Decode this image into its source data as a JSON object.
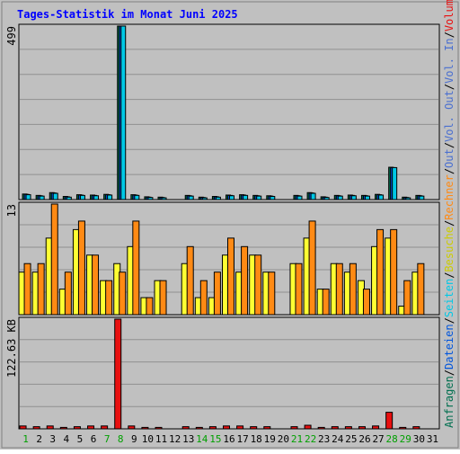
{
  "chart_data": [
    {
      "type": "bar",
      "title": "Tages-Statistik im Monat Juni 2025",
      "panel": "top",
      "ymax_label": "499",
      "ylim": [
        0,
        499
      ],
      "categories": [
        "1",
        "2",
        "3",
        "4",
        "5",
        "6",
        "7",
        "8",
        "9",
        "10",
        "11",
        "12",
        "13",
        "14",
        "15",
        "16",
        "17",
        "18",
        "19",
        "20",
        "21",
        "22",
        "23",
        "24",
        "25",
        "26",
        "27",
        "28",
        "29",
        "30",
        "31"
      ],
      "weekend_days": [
        "1",
        "7",
        "8",
        "14",
        "15",
        "21",
        "22",
        "28",
        "29"
      ],
      "series": [
        {
          "name": "Anfragen",
          "color": "#006f4f",
          "values": [
            16,
            12,
            20,
            9,
            14,
            13,
            15,
            499,
            14,
            8,
            7,
            0,
            12,
            7,
            9,
            13,
            14,
            12,
            11,
            0,
            12,
            20,
            8,
            12,
            13,
            12,
            15,
            93,
            7,
            12,
            0
          ]
        },
        {
          "name": "Dateien",
          "color": "#0055dd",
          "values": [
            15,
            11,
            19,
            8,
            13,
            12,
            14,
            499,
            13,
            7,
            6,
            0,
            11,
            6,
            8,
            12,
            13,
            11,
            10,
            0,
            11,
            19,
            7,
            11,
            12,
            11,
            14,
            92,
            6,
            11,
            0
          ]
        },
        {
          "name": "Seiten",
          "color": "#00c8e6",
          "values": [
            14,
            10,
            18,
            7,
            12,
            11,
            13,
            499,
            12,
            6,
            5,
            0,
            10,
            5,
            7,
            11,
            12,
            10,
            9,
            0,
            10,
            18,
            6,
            10,
            11,
            10,
            13,
            92,
            5,
            10,
            0
          ]
        }
      ]
    },
    {
      "type": "bar",
      "panel": "middle",
      "ymax_label": "13",
      "ylim": [
        0,
        13
      ],
      "categories": [
        "1",
        "2",
        "3",
        "4",
        "5",
        "6",
        "7",
        "8",
        "9",
        "10",
        "11",
        "12",
        "13",
        "14",
        "15",
        "16",
        "17",
        "18",
        "19",
        "20",
        "21",
        "22",
        "23",
        "24",
        "25",
        "26",
        "27",
        "28",
        "29",
        "30",
        "31"
      ],
      "series": [
        {
          "name": "Besuche",
          "color": "#ffff33",
          "values": [
            5,
            5,
            9,
            3,
            10,
            7,
            4,
            6,
            8,
            2,
            4,
            0,
            6,
            2,
            2,
            7,
            5,
            7,
            5,
            0,
            6,
            9,
            3,
            6,
            5,
            4,
            8,
            9,
            1,
            5,
            0
          ]
        },
        {
          "name": "Rechner",
          "color": "#ff8a14",
          "values": [
            6,
            6,
            13,
            5,
            11,
            7,
            4,
            5,
            11,
            2,
            4,
            0,
            8,
            4,
            5,
            9,
            8,
            7,
            5,
            0,
            6,
            11,
            3,
            6,
            6,
            3,
            10,
            10,
            4,
            6,
            0
          ]
        }
      ]
    },
    {
      "type": "bar",
      "panel": "bottom",
      "ymax_label": "122.63 KB",
      "ylim": [
        0,
        122.63
      ],
      "unit": "KB",
      "categories": [
        "1",
        "2",
        "3",
        "4",
        "5",
        "6",
        "7",
        "8",
        "9",
        "10",
        "11",
        "12",
        "13",
        "14",
        "15",
        "16",
        "17",
        "18",
        "19",
        "20",
        "21",
        "22",
        "23",
        "24",
        "25",
        "26",
        "27",
        "28",
        "29",
        "30",
        "31"
      ],
      "series": [
        {
          "name": "Volumen",
          "color": "#e81010",
          "values": [
            3.2,
            2.4,
            3.2,
            1.6,
            2.4,
            3.2,
            3.2,
            122.63,
            3.2,
            1.6,
            1.6,
            0,
            2.4,
            1.6,
            2.4,
            3.2,
            3.2,
            2.4,
            2.4,
            0,
            2.4,
            4.0,
            1.6,
            2.4,
            2.4,
            2.4,
            3.2,
            18.5,
            1.6,
            2.4,
            0
          ]
        }
      ]
    }
  ],
  "legend_right": [
    {
      "text": "Anfragen",
      "color": "#006f4f"
    },
    {
      "text": "Dateien",
      "color": "#0055dd"
    },
    {
      "text": "Seiten",
      "color": "#00c8e6"
    },
    {
      "text": "Besuche",
      "color": "#cccc00"
    },
    {
      "text": "Rechner",
      "color": "#ff8a14"
    },
    {
      "text": "Out",
      "color": "#4a6fd0"
    },
    {
      "text": "Vol. Out",
      "color": "#4a6fd0"
    },
    {
      "text": "Vol. In",
      "color": "#4a6fd0"
    },
    {
      "text": "Volumen",
      "color": "#e81010"
    }
  ],
  "colors": {
    "background": "#c0c0c0",
    "title": "#0000ff",
    "grid": "#909090",
    "weekday_label": "#000000",
    "weekend_label": "#00a000"
  }
}
